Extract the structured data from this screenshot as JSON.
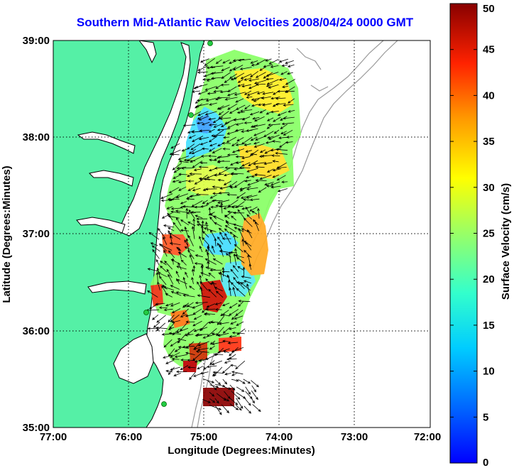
{
  "title": "Southern Mid-Atlantic Raw Velocities 2008/04/24 0000 GMT",
  "map": {
    "xlabel": "Longitude (Degrees:Minutes)",
    "ylabel": "Latitude (Degrees:Minutes)",
    "xticks": [
      "77:00",
      "76:00",
      "75:00",
      "74:00",
      "73:00",
      "72:00"
    ],
    "yticks": [
      "39:00",
      "38:00",
      "37:00",
      "36:00",
      "35:00"
    ],
    "lon_range": [
      -77,
      -72
    ],
    "lat_range": [
      35,
      39
    ],
    "grid": "dotted",
    "colors": {
      "land": "#55f0a6",
      "water": "#ffffff",
      "bathymetry": "#999999",
      "arrows": "#000000",
      "stations": "#22cc44"
    }
  },
  "colorbar": {
    "label": "Surface Velocity (cm/s)",
    "ticks": [
      "0",
      "5",
      "10",
      "15",
      "20",
      "25",
      "30",
      "35",
      "40",
      "45",
      "50"
    ],
    "range": [
      0,
      50
    ],
    "colormap": "jet"
  }
}
